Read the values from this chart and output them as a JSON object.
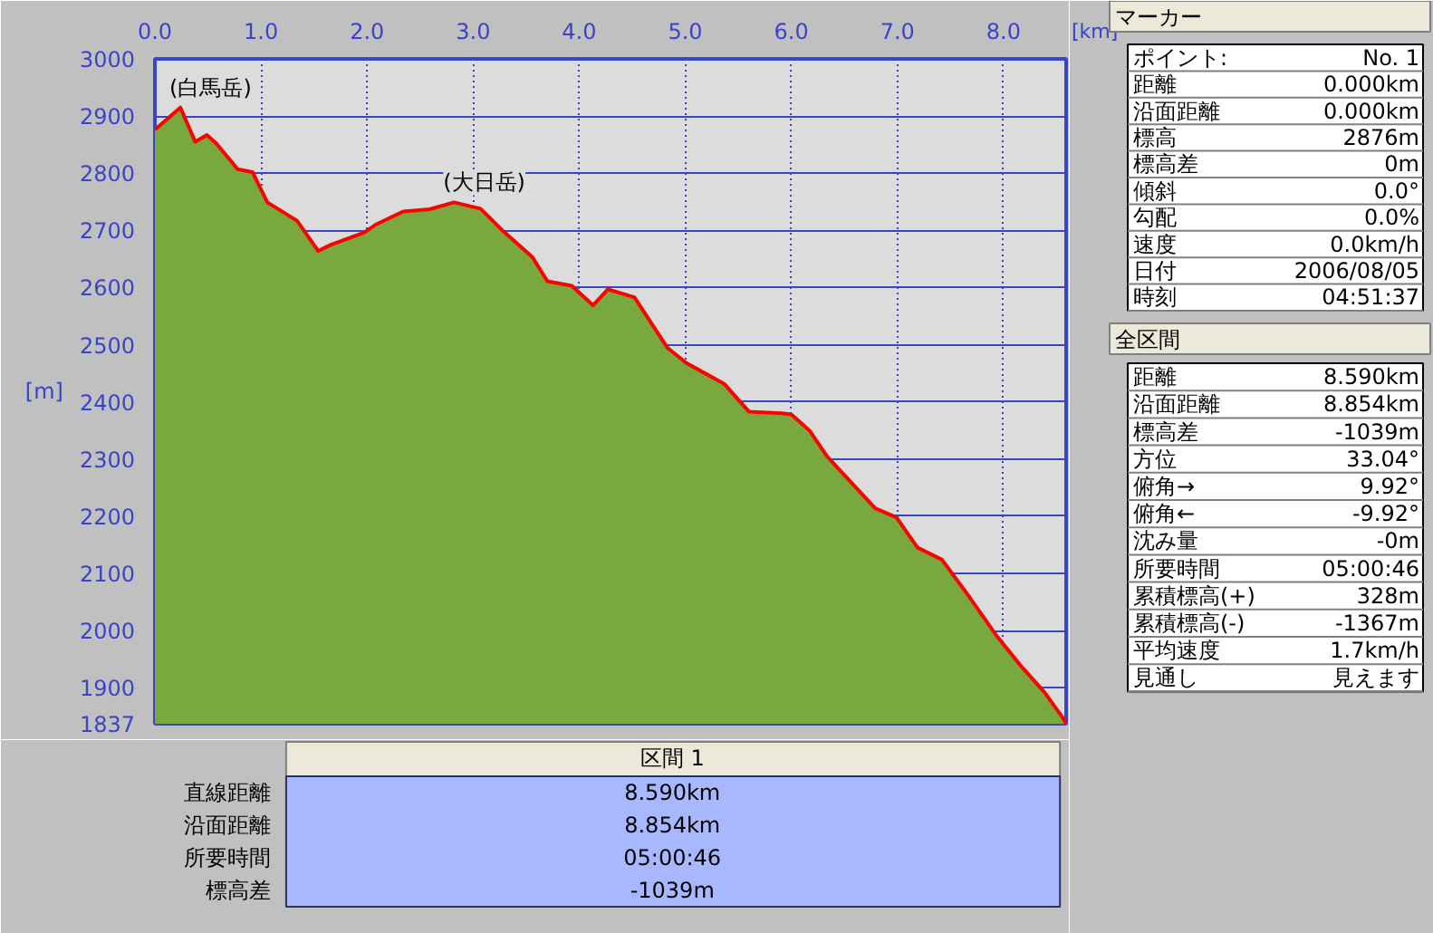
{
  "chart_data": {
    "type": "area",
    "xlabel": "[km]",
    "ylabel": "[m]",
    "x": [
      0,
      0.24,
      0.38,
      0.49,
      0.58,
      0.78,
      0.92,
      1.06,
      1.34,
      1.54,
      1.66,
      1.97,
      2.08,
      2.34,
      2.59,
      2.82,
      3.07,
      3.27,
      3.56,
      3.7,
      3.93,
      4.13,
      4.27,
      4.52,
      4.83,
      5.01,
      5.37,
      5.6,
      5.91,
      6.0,
      6.17,
      6.34,
      6.79,
      6.99,
      7.19,
      7.42,
      7.65,
      7.93,
      8.16,
      8.39,
      8.56,
      8.59
    ],
    "series": [
      {
        "color": "#78a83e",
        "values": [
          2876,
          2915,
          2855,
          2867,
          2852,
          2807,
          2802,
          2749,
          2717,
          2664,
          2675,
          2696,
          2710,
          2733,
          2737,
          2749,
          2738,
          2701,
          2653,
          2611,
          2603,
          2569,
          2597,
          2583,
          2495,
          2468,
          2431,
          2383,
          2380,
          2378,
          2350,
          2304,
          2214,
          2198,
          2145,
          2124,
          2066,
          1992,
          1939,
          1891,
          1847,
          1837
        ]
      }
    ],
    "xlim": [
      0,
      8.59
    ],
    "ylim": [
      1837,
      3000
    ],
    "xticks": [
      {
        "value": 0,
        "label": "0.0"
      },
      {
        "value": 1,
        "label": "1.0"
      },
      {
        "value": 2,
        "label": "2.0"
      },
      {
        "value": 3,
        "label": "3.0"
      },
      {
        "value": 4,
        "label": "4.0"
      },
      {
        "value": 5,
        "label": "5.0"
      },
      {
        "value": 6,
        "label": "6.0"
      },
      {
        "value": 7,
        "label": "7.0"
      },
      {
        "value": 8,
        "label": "8.0"
      }
    ],
    "yticks": [
      1837,
      1900,
      2000,
      2100,
      2200,
      2300,
      2400,
      2500,
      2600,
      2700,
      2800,
      2900,
      3000
    ],
    "grid": true,
    "annotations": [
      {
        "text": "(白馬岳)",
        "x": 0.24,
        "y": 2915
      },
      {
        "text": "(大日岳)",
        "x": 2.82,
        "y": 2749
      },
      "マーカー",
      "ポイント:",
      "No. 1",
      "距離",
      "0.000km",
      "沿面距離",
      "0.000km",
      "標高",
      "2876m",
      "標高差",
      "0m",
      "傾斜",
      "0.0°",
      "勾配",
      "0.0%",
      "速度",
      "0.0km/h",
      "日付",
      "2006/08/05",
      "時刻",
      "04:51:37",
      "全区間",
      "距離",
      "8.590km",
      "沿面距離",
      "8.854km",
      "標高差",
      "-1039m",
      "方位",
      "33.04°",
      "俯角→",
      "9.92°",
      "俯角←",
      "-9.92°",
      "沈み量",
      "-0m",
      "所要時間",
      "05:00:46",
      "累積標高(+)",
      "328m",
      "累積標高(-)",
      "-1367m",
      "平均速度",
      "1.7km/h",
      "見通し",
      "見えます",
      "区間 1",
      "直線距離",
      "8.590km",
      "沿面距離",
      "8.854km",
      "所要時間",
      "05:00:46",
      "標高差",
      "-1039m"
    ]
  }
}
